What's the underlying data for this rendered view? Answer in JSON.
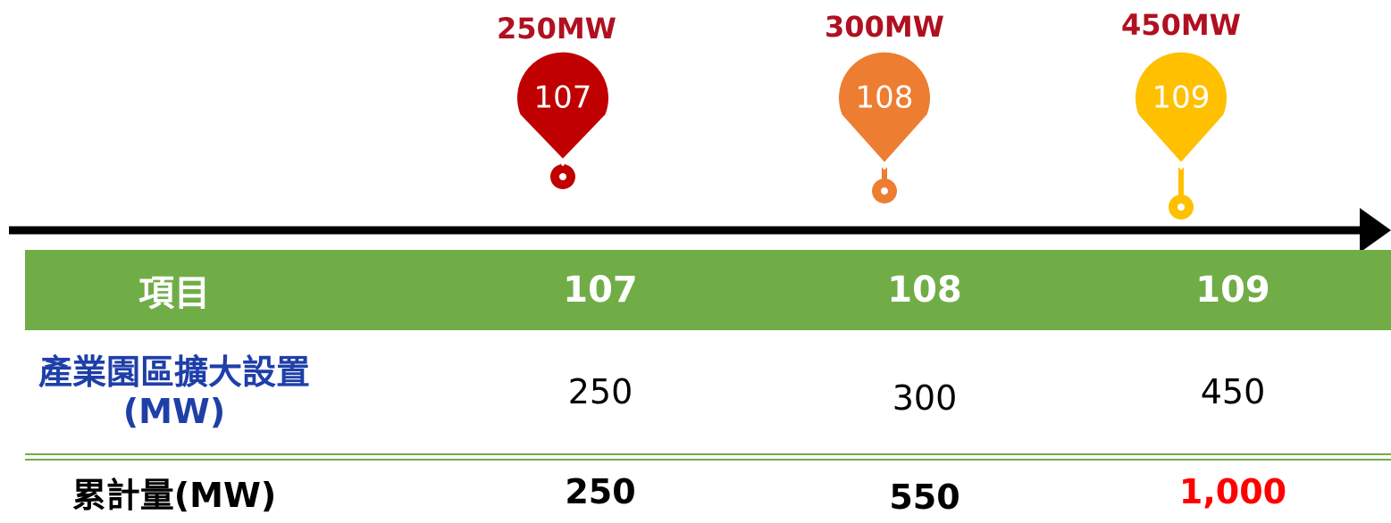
{
  "markers": [
    {
      "label": "250MW",
      "year": "107"
    },
    {
      "label": "300MW",
      "year": "108"
    },
    {
      "label": "450MW",
      "year": "109"
    }
  ],
  "table": {
    "header": [
      "項目",
      "107",
      "108",
      "109"
    ],
    "rows": [
      [
        "產業園區擴大設置\n(MW)",
        "250",
        "300",
        "450"
      ],
      [
        "累計量(MW)",
        "250",
        "550",
        "1,000"
      ]
    ]
  }
}
